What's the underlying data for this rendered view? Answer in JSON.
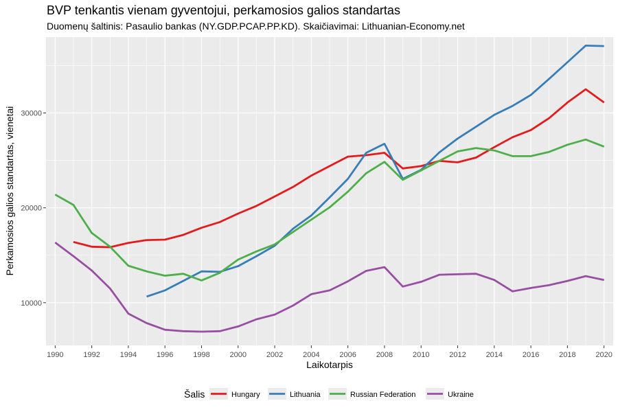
{
  "title": "BVP tenkantis vienam gyventojui, perkamosios galios standartas",
  "subtitle": "Duomenų šaltinis: Pasaulio bankas (NY.GDP.PCAP.PP.KD). Skaičiavimai: Lithuanian-Economy.net",
  "chart_data": {
    "type": "line",
    "title": "BVP tenkantis vienam gyventojui, perkamosios galios standartas",
    "subtitle": "Duomenų šaltinis: Pasaulio bankas (NY.GDP.PCAP.PP.KD). Skaičiavimai: Lithuanian-Economy.net",
    "xlabel": "Laikotarpis",
    "ylabel": "Perkamosios galios standartas, vienetai",
    "xlim": [
      1989.5,
      2020.5
    ],
    "ylim": [
      5500,
      38000
    ],
    "x_ticks": [
      1990,
      1992,
      1994,
      1996,
      1998,
      2000,
      2002,
      2004,
      2006,
      2008,
      2010,
      2012,
      2014,
      2016,
      2018,
      2020
    ],
    "y_ticks": [
      10000,
      20000,
      30000
    ],
    "y_tick_labels": [
      "10000",
      "20000",
      "30000"
    ],
    "grid": true,
    "legend_title": "Šalis",
    "legend_position": "bottom",
    "series": [
      {
        "name": "Hungary",
        "color": "#e41a1c",
        "x": [
          1991,
          1992,
          1993,
          1994,
          1995,
          1996,
          1997,
          1998,
          1999,
          2000,
          2001,
          2002,
          2003,
          2004,
          2005,
          2006,
          2007,
          2008,
          2009,
          2010,
          2011,
          2012,
          2013,
          2014,
          2015,
          2016,
          2017,
          2018,
          2019,
          2020
        ],
        "values": [
          16400,
          15900,
          15850,
          16300,
          16600,
          16650,
          17150,
          17900,
          18500,
          19400,
          20200,
          21200,
          22200,
          23400,
          24400,
          25400,
          25550,
          25800,
          24150,
          24400,
          24950,
          24800,
          25300,
          26400,
          27450,
          28200,
          29450,
          31100,
          32500,
          31100
        ]
      },
      {
        "name": "Lithuania",
        "color": "#377eb8",
        "x": [
          1995,
          1996,
          1997,
          1998,
          1999,
          2000,
          2001,
          2002,
          2003,
          2004,
          2005,
          2006,
          2007,
          2008,
          2009,
          2010,
          2011,
          2012,
          2013,
          2014,
          2015,
          2016,
          2017,
          2018,
          2019,
          2020
        ],
        "values": [
          10650,
          11300,
          12300,
          13300,
          13250,
          13850,
          14900,
          16000,
          17800,
          19200,
          21100,
          23050,
          25800,
          26750,
          23050,
          24000,
          25850,
          27300,
          28550,
          29800,
          30750,
          31900,
          33600,
          35350,
          37100,
          37050
        ]
      },
      {
        "name": "Russian Federation",
        "color": "#4daf4a",
        "x": [
          1990,
          1991,
          1992,
          1993,
          1994,
          1995,
          1996,
          1997,
          1998,
          1999,
          2000,
          2001,
          2002,
          2003,
          2004,
          2005,
          2006,
          2007,
          2008,
          2009,
          2010,
          2011,
          2012,
          2013,
          2014,
          2015,
          2016,
          2017,
          2018,
          2019,
          2020
        ],
        "values": [
          21400,
          20300,
          17350,
          15900,
          13900,
          13300,
          12850,
          13050,
          12350,
          13150,
          14550,
          15400,
          16150,
          17450,
          18750,
          20050,
          21700,
          23650,
          24850,
          22950,
          23950,
          24950,
          25950,
          26300,
          26050,
          25450,
          25450,
          25900,
          26650,
          27200,
          26450
        ]
      },
      {
        "name": "Ukraine",
        "color": "#984ea3",
        "x": [
          1990,
          1991,
          1992,
          1993,
          1994,
          1995,
          1996,
          1997,
          1998,
          1999,
          2000,
          2001,
          2002,
          2003,
          2004,
          2005,
          2006,
          2007,
          2008,
          2009,
          2010,
          2011,
          2012,
          2013,
          2014,
          2015,
          2016,
          2017,
          2018,
          2019,
          2020
        ],
        "values": [
          16350,
          14900,
          13400,
          11500,
          8850,
          7850,
          7150,
          7000,
          6950,
          7000,
          7500,
          8250,
          8750,
          9700,
          10900,
          11300,
          12250,
          13350,
          13750,
          11700,
          12200,
          12950,
          13000,
          13050,
          12400,
          11200,
          11550,
          11850,
          12300,
          12800,
          12400
        ]
      }
    ]
  }
}
